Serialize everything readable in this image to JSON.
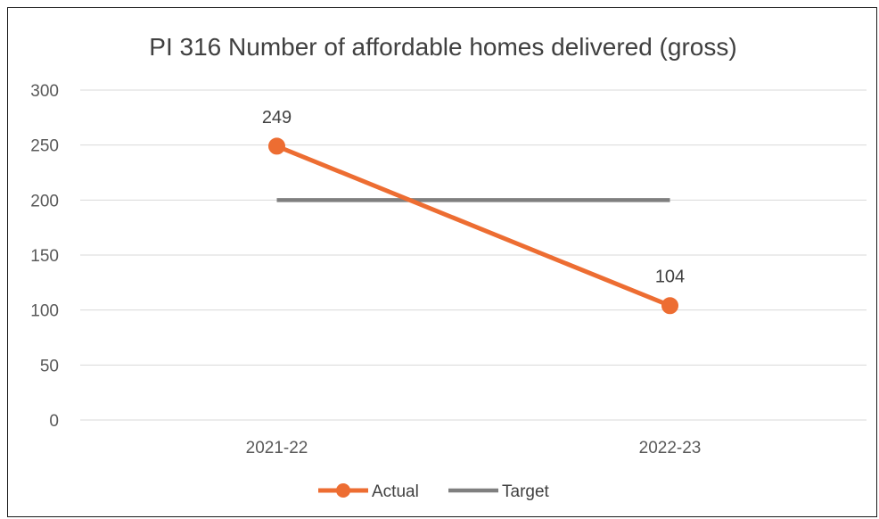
{
  "chart_data": {
    "type": "line",
    "title": "PI 316 Number of affordable homes delivered (gross)",
    "categories": [
      "2021-22",
      "2022-23"
    ],
    "ylim": [
      0,
      300
    ],
    "yticks": [
      0,
      50,
      100,
      150,
      200,
      250,
      300
    ],
    "grid": true,
    "legend_position": "bottom",
    "series": [
      {
        "name": "Actual",
        "values": [
          249,
          104
        ],
        "color": "#ED6D32",
        "markers": true,
        "data_labels": [
          "249",
          "104"
        ]
      },
      {
        "name": "Target",
        "values": [
          200,
          200
        ],
        "color": "#7F7F7F",
        "markers": false,
        "data_labels": []
      }
    ]
  }
}
